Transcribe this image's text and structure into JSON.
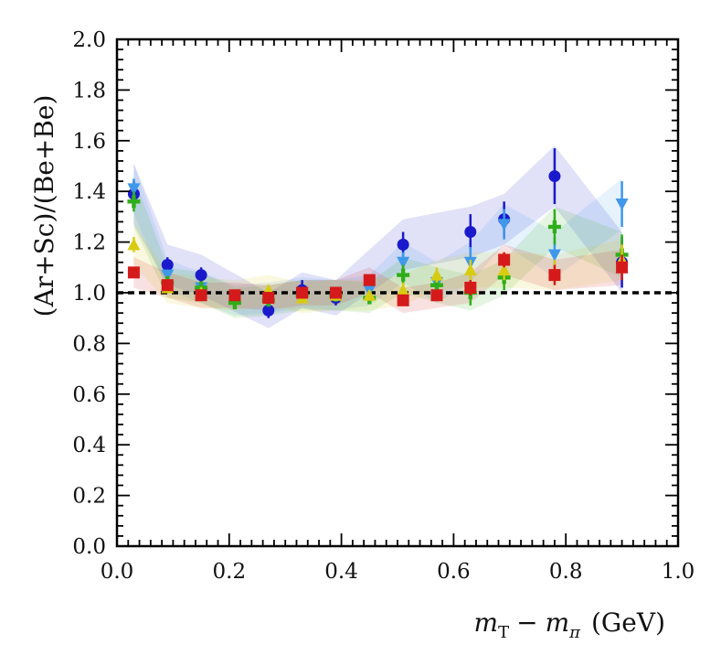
{
  "chart_data": {
    "type": "scatter",
    "title": "",
    "xlabel": "m_T − m_π (GeV)",
    "xlabel_parts": {
      "m1": "m",
      "sub1": "T",
      "minus": "−",
      "m2": "m",
      "sub2": "π",
      "unit": "(GeV)"
    },
    "ylabel": "(Ar+Sc)/(Be+Be)",
    "xlim": [
      0.0,
      1.0
    ],
    "ylim": [
      0.0,
      2.0
    ],
    "xticks": [
      "0.0",
      "0.2",
      "0.4",
      "0.6",
      "0.8",
      "1.0"
    ],
    "yticks": [
      "0.0",
      "0.2",
      "0.4",
      "0.6",
      "0.8",
      "1.0",
      "1.2",
      "1.4",
      "1.6",
      "1.8",
      "2.0"
    ],
    "reference_line": 1.0,
    "series": [
      {
        "name": "blue circles",
        "marker": "circle",
        "color": "#1a1acc",
        "x": [
          0.03,
          0.09,
          0.15,
          0.27,
          0.33,
          0.39,
          0.51,
          0.63,
          0.69,
          0.78,
          0.9
        ],
        "y": [
          1.39,
          1.11,
          1.07,
          0.93,
          1.01,
          0.98,
          1.19,
          1.24,
          1.29,
          1.46,
          1.12
        ],
        "err": [
          0.05,
          0.03,
          0.03,
          0.03,
          0.04,
          0.03,
          0.05,
          0.07,
          0.07,
          0.11,
          0.1
        ],
        "band": [
          0.12,
          0.08,
          0.08,
          0.07,
          0.07,
          0.07,
          0.1,
          0.1,
          0.1,
          0.12,
          0.12
        ]
      },
      {
        "name": "light blue triangles",
        "marker": "triangle-down",
        "color": "#3f98ea",
        "x": [
          0.03,
          0.09,
          0.15,
          0.21,
          0.27,
          0.33,
          0.39,
          0.45,
          0.51,
          0.57,
          0.63,
          0.69,
          0.78,
          0.9
        ],
        "y": [
          1.41,
          1.07,
          1.02,
          0.97,
          0.98,
          1.0,
          0.99,
          1.01,
          1.12,
          1.04,
          1.12,
          1.27,
          1.15,
          1.35
        ],
        "err": [
          0.04,
          0.02,
          0.02,
          0.02,
          0.02,
          0.02,
          0.02,
          0.02,
          0.04,
          0.05,
          0.06,
          0.06,
          0.07,
          0.09
        ],
        "band": [
          0.1,
          0.06,
          0.06,
          0.06,
          0.06,
          0.06,
          0.06,
          0.06,
          0.08,
          0.08,
          0.08,
          0.08,
          0.09,
          0.1
        ]
      },
      {
        "name": "green crosses",
        "marker": "plus",
        "color": "#2fae1a",
        "x": [
          0.03,
          0.09,
          0.15,
          0.21,
          0.27,
          0.33,
          0.39,
          0.45,
          0.51,
          0.57,
          0.63,
          0.69,
          0.78,
          0.9
        ],
        "y": [
          1.36,
          1.04,
          1.02,
          0.96,
          0.97,
          0.99,
          0.99,
          0.98,
          1.07,
          1.03,
          1.0,
          1.06,
          1.26,
          1.15
        ],
        "err": [
          0.04,
          0.02,
          0.02,
          0.02,
          0.02,
          0.02,
          0.02,
          0.02,
          0.04,
          0.04,
          0.05,
          0.05,
          0.07,
          0.08
        ],
        "band": [
          0.1,
          0.06,
          0.06,
          0.06,
          0.06,
          0.06,
          0.06,
          0.06,
          0.07,
          0.07,
          0.07,
          0.07,
          0.08,
          0.09
        ]
      },
      {
        "name": "yellow triangles",
        "marker": "triangle-up",
        "color": "#d8cc12",
        "x": [
          0.03,
          0.09,
          0.15,
          0.21,
          0.27,
          0.33,
          0.39,
          0.45,
          0.51,
          0.57,
          0.63,
          0.69,
          0.78,
          0.9
        ],
        "y": [
          1.19,
          1.02,
          1.0,
          0.99,
          1.01,
          0.98,
          0.99,
          0.99,
          1.01,
          1.07,
          1.09,
          1.09,
          1.08,
          1.13
        ],
        "err": [
          0.03,
          0.02,
          0.02,
          0.02,
          0.02,
          0.02,
          0.02,
          0.02,
          0.03,
          0.03,
          0.04,
          0.04,
          0.05,
          0.06
        ],
        "band": [
          0.08,
          0.06,
          0.06,
          0.06,
          0.06,
          0.06,
          0.06,
          0.06,
          0.06,
          0.06,
          0.07,
          0.07,
          0.07,
          0.08
        ]
      },
      {
        "name": "red squares",
        "marker": "square",
        "color": "#d41a1a",
        "x": [
          0.03,
          0.09,
          0.15,
          0.21,
          0.27,
          0.33,
          0.39,
          0.45,
          0.51,
          0.57,
          0.63,
          0.69,
          0.78,
          0.9
        ],
        "y": [
          1.08,
          1.03,
          0.99,
          0.99,
          0.98,
          1.0,
          1.0,
          1.05,
          0.97,
          0.99,
          1.02,
          1.13,
          1.07,
          1.1
        ],
        "err": [
          0.02,
          0.02,
          0.02,
          0.02,
          0.02,
          0.02,
          0.02,
          0.02,
          0.02,
          0.02,
          0.03,
          0.03,
          0.04,
          0.05
        ],
        "band": [
          0.06,
          0.05,
          0.05,
          0.05,
          0.05,
          0.05,
          0.05,
          0.05,
          0.05,
          0.05,
          0.06,
          0.06,
          0.06,
          0.07
        ]
      }
    ]
  }
}
